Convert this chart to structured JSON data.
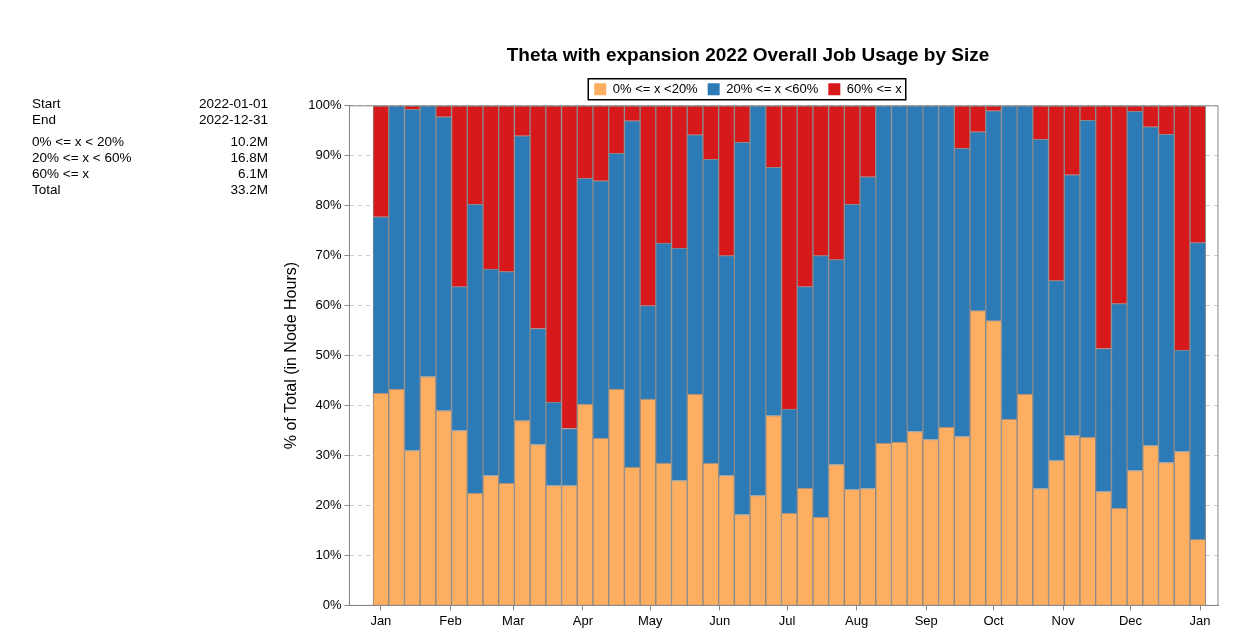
{
  "chart_data": {
    "type": "bar",
    "stacked": true,
    "title": "Theta with expansion 2022 Overall Job Usage by Size",
    "ylabel": "% of Total (in Node Hours)",
    "x": [
      "2022-01-01",
      "2022-01-08",
      "2022-01-15",
      "2022-01-22",
      "2022-01-29",
      "2022-02-05",
      "2022-02-12",
      "2022-02-19",
      "2022-02-26",
      "2022-03-05",
      "2022-03-12",
      "2022-03-19",
      "2022-03-26",
      "2022-04-02",
      "2022-04-09",
      "2022-04-16",
      "2022-04-23",
      "2022-04-30",
      "2022-05-07",
      "2022-05-14",
      "2022-05-21",
      "2022-05-28",
      "2022-06-04",
      "2022-06-11",
      "2022-06-18",
      "2022-06-25",
      "2022-07-02",
      "2022-07-09",
      "2022-07-16",
      "2022-07-23",
      "2022-07-30",
      "2022-08-06",
      "2022-08-13",
      "2022-08-20",
      "2022-08-27",
      "2022-09-03",
      "2022-09-10",
      "2022-09-17",
      "2022-09-24",
      "2022-10-01",
      "2022-10-08",
      "2022-10-15",
      "2022-10-22",
      "2022-10-29",
      "2022-11-05",
      "2022-11-12",
      "2022-11-19",
      "2022-11-26",
      "2022-12-03",
      "2022-12-10",
      "2022-12-17",
      "2022-12-24",
      "2022-12-31"
    ],
    "series": [
      {
        "name": "0% <= x <20%",
        "color": "#fdae61",
        "values": [
          42.5,
          43.3,
          31,
          45.8,
          39,
          35,
          22.5,
          26,
          24.5,
          37,
          32.2,
          24,
          24,
          40.3,
          33.5,
          43.3,
          27.7,
          41.3,
          28.5,
          25,
          42.3,
          28.5,
          26,
          18.2,
          22,
          38,
          18.5,
          23.5,
          17.7,
          28.2,
          23.2,
          23.4,
          32.5,
          32.7,
          34.8,
          33.2,
          35.7,
          33.8,
          59,
          57,
          37.3,
          42.3,
          23.4,
          29,
          34,
          33.7,
          22.8,
          19.5,
          27,
          32,
          28.6,
          30.8,
          13.2
        ]
      },
      {
        "name": "20% <= x <60%",
        "color": "#2c7bb6",
        "values": [
          35.3,
          56.7,
          68.3,
          54.2,
          58.8,
          28.8,
          57.8,
          41.3,
          42.3,
          57,
          23.2,
          16.7,
          11.4,
          45.2,
          51.5,
          47.2,
          69.3,
          18.7,
          44,
          46.5,
          51.9,
          60.8,
          44,
          74.5,
          78,
          49.7,
          20.8,
          40.3,
          52.3,
          41,
          57.1,
          62.4,
          67.5,
          67.3,
          65.2,
          66.8,
          64.3,
          57.7,
          35.8,
          42,
          62.7,
          57.7,
          69.9,
          36,
          52.2,
          63.4,
          28.6,
          40.9,
          71.9,
          63.8,
          65.7,
          20.3,
          59.4
        ]
      },
      {
        "name": "60% <= x",
        "color": "#d7191c",
        "values": [
          22.2,
          0,
          0.7,
          0,
          2.2,
          36.2,
          19.7,
          32.7,
          33.2,
          6,
          44.6,
          59.3,
          64.6,
          14.5,
          15,
          9.5,
          3,
          40,
          27.5,
          28.5,
          5.8,
          10.7,
          30,
          7.3,
          0,
          12.3,
          60.7,
          36.2,
          30,
          30.8,
          19.7,
          14.2,
          0,
          0,
          0,
          0,
          0,
          8.5,
          5.2,
          1,
          0,
          0,
          6.7,
          35,
          13.8,
          2.9,
          48.6,
          39.6,
          1.1,
          4.2,
          5.7,
          48.9,
          27.4
        ]
      }
    ],
    "xlim": [
      "2021-12-18",
      "2023-01-09"
    ],
    "xticks": [
      {
        "value": "2022-01-01",
        "label": "Jan"
      },
      {
        "value": "2022-02-01",
        "label": "Feb"
      },
      {
        "value": "2022-03-01",
        "label": "Mar"
      },
      {
        "value": "2022-04-01",
        "label": "Apr"
      },
      {
        "value": "2022-05-01",
        "label": "May"
      },
      {
        "value": "2022-06-01",
        "label": "Jun"
      },
      {
        "value": "2022-07-01",
        "label": "Jul"
      },
      {
        "value": "2022-08-01",
        "label": "Aug"
      },
      {
        "value": "2022-09-01",
        "label": "Sep"
      },
      {
        "value": "2022-10-01",
        "label": "Oct"
      },
      {
        "value": "2022-11-01",
        "label": "Nov"
      },
      {
        "value": "2022-12-01",
        "label": "Dec"
      },
      {
        "value": "2023-01-01",
        "label": "Jan"
      }
    ],
    "ylim": [
      0,
      100
    ],
    "yticks": [
      {
        "value": 0,
        "label": "0%"
      },
      {
        "value": 10,
        "label": "10%"
      },
      {
        "value": 20,
        "label": "20%"
      },
      {
        "value": 30,
        "label": "30%"
      },
      {
        "value": 40,
        "label": "40%"
      },
      {
        "value": 50,
        "label": "50%"
      },
      {
        "value": 60,
        "label": "60%"
      },
      {
        "value": 70,
        "label": "70%"
      },
      {
        "value": 80,
        "label": "80%"
      },
      {
        "value": 90,
        "label": "90%"
      },
      {
        "value": 100,
        "label": "100%"
      }
    ],
    "grid": true,
    "legend": "top",
    "annotations": [
      "Start\t2022-01-01",
      "End\t2022-12-31",
      "0% <= x < 20%\t10.2M",
      "20% <= x < 60%\t16.8M",
      "60% <= x\t6.1M",
      "Total\t33.2M"
    ]
  }
}
